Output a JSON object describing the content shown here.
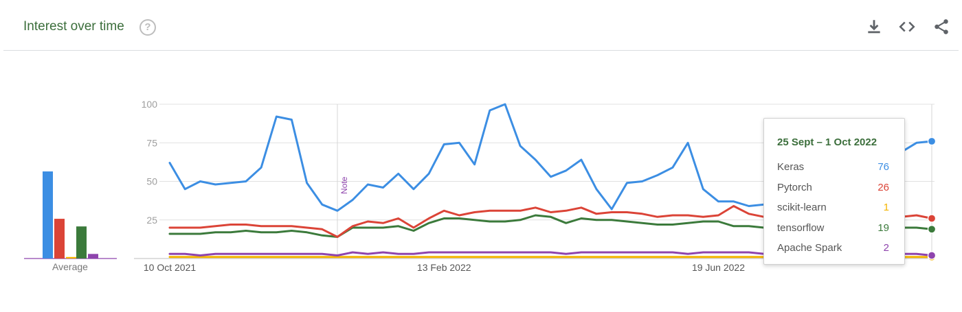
{
  "header": {
    "title": "Interest over time",
    "help_icon": "help-circle-icon",
    "actions": [
      "download-icon",
      "embed-code-icon",
      "share-icon"
    ]
  },
  "colors": {
    "Keras": "#3c8ee3",
    "Pytorch": "#db4437",
    "scikit-learn": "#f4b400",
    "tensorflow": "#3b7a3b",
    "Apache Spark": "#8e44ad"
  },
  "chart_data": {
    "type": "line",
    "title": "",
    "xlabel": "",
    "ylabel": "",
    "ylim": [
      0,
      100
    ],
    "yticks": [
      25,
      50,
      75,
      100
    ],
    "xtick_labels": [
      "10 Oct 2021",
      "13 Feb 2022",
      "19 Jun 2022"
    ],
    "x": [
      "10 Oct 2021",
      "17 Oct 2021",
      "24 Oct 2021",
      "31 Oct 2021",
      "7 Nov 2021",
      "14 Nov 2021",
      "21 Nov 2021",
      "28 Nov 2021",
      "5 Dec 2021",
      "12 Dec 2021",
      "19 Dec 2021",
      "26 Dec 2021",
      "2 Jan 2022",
      "9 Jan 2022",
      "16 Jan 2022",
      "23 Jan 2022",
      "30 Jan 2022",
      "6 Feb 2022",
      "13 Feb 2022",
      "20 Feb 2022",
      "27 Feb 2022",
      "6 Mar 2022",
      "13 Mar 2022",
      "20 Mar 2022",
      "27 Mar 2022",
      "3 Apr 2022",
      "10 Apr 2022",
      "17 Apr 2022",
      "24 Apr 2022",
      "1 May 2022",
      "8 May 2022",
      "15 May 2022",
      "22 May 2022",
      "29 May 2022",
      "5 Jun 2022",
      "12 Jun 2022",
      "19 Jun 2022",
      "26 Jun 2022",
      "3 Jul 2022",
      "10 Jul 2022",
      "17 Jul 2022",
      "24 Jul 2022",
      "31 Jul 2022",
      "7 Aug 2022",
      "14 Aug 2022",
      "21 Aug 2022",
      "28 Aug 2022",
      "4 Sept 2022",
      "11 Sept 2022",
      "18 Sept 2022",
      "25 Sept 2022"
    ],
    "series": [
      {
        "name": "Keras",
        "values": [
          62,
          45,
          50,
          48,
          49,
          50,
          59,
          92,
          90,
          49,
          35,
          31,
          38,
          48,
          46,
          55,
          45,
          55,
          74,
          75,
          61,
          96,
          100,
          73,
          64,
          53,
          57,
          64,
          45,
          32,
          49,
          50,
          54,
          59,
          75,
          45,
          37,
          37,
          34,
          35,
          36,
          38,
          45,
          54,
          66,
          67,
          55,
          60,
          69,
          75,
          76
        ]
      },
      {
        "name": "Pytorch",
        "values": [
          20,
          20,
          20,
          21,
          22,
          22,
          21,
          21,
          21,
          20,
          19,
          14,
          21,
          24,
          23,
          26,
          20,
          26,
          31,
          28,
          30,
          31,
          31,
          31,
          33,
          30,
          31,
          33,
          29,
          30,
          30,
          29,
          27,
          28,
          28,
          27,
          28,
          34,
          29,
          27,
          27,
          27,
          27,
          27,
          27,
          27,
          27,
          27,
          27,
          28,
          26
        ]
      },
      {
        "name": "scikit-learn",
        "values": [
          1,
          1,
          1,
          1,
          1,
          1,
          1,
          1,
          1,
          1,
          1,
          1,
          1,
          1,
          1,
          1,
          1,
          1,
          1,
          1,
          1,
          1,
          1,
          1,
          1,
          1,
          1,
          1,
          1,
          1,
          1,
          1,
          1,
          1,
          1,
          1,
          1,
          1,
          1,
          1,
          1,
          1,
          1,
          1,
          1,
          1,
          1,
          1,
          1,
          1,
          1
        ]
      },
      {
        "name": "tensorflow",
        "values": [
          16,
          16,
          16,
          17,
          17,
          18,
          17,
          17,
          18,
          17,
          15,
          14,
          20,
          20,
          20,
          21,
          18,
          23,
          26,
          26,
          25,
          24,
          24,
          25,
          28,
          27,
          23,
          26,
          25,
          25,
          24,
          23,
          22,
          22,
          23,
          24,
          24,
          21,
          21,
          20,
          20,
          20,
          20,
          20,
          20,
          20,
          20,
          20,
          20,
          20,
          19
        ]
      },
      {
        "name": "Apache Spark",
        "values": [
          3,
          3,
          2,
          3,
          3,
          3,
          3,
          3,
          3,
          3,
          3,
          2,
          4,
          3,
          4,
          3,
          3,
          4,
          4,
          4,
          4,
          4,
          4,
          4,
          4,
          4,
          3,
          4,
          4,
          4,
          4,
          4,
          4,
          4,
          3,
          4,
          4,
          4,
          4,
          3,
          3,
          3,
          3,
          3,
          3,
          3,
          3,
          3,
          3,
          3,
          2
        ]
      }
    ],
    "note_label": "Note",
    "average": {
      "label": "Average",
      "values": [
        {
          "name": "Keras",
          "value": 57
        },
        {
          "name": "Pytorch",
          "value": 26
        },
        {
          "name": "scikit-learn",
          "value": 1
        },
        {
          "name": "tensorflow",
          "value": 21
        },
        {
          "name": "Apache Spark",
          "value": 3
        }
      ]
    },
    "tooltip": {
      "date": "25 Sept – 1 Oct 2022",
      "rows": [
        {
          "name": "Keras",
          "value": "76"
        },
        {
          "name": "Pytorch",
          "value": "26"
        },
        {
          "name": "scikit-learn",
          "value": "1"
        },
        {
          "name": "tensorflow",
          "value": "19"
        },
        {
          "name": "Apache Spark",
          "value": "2"
        }
      ]
    }
  }
}
